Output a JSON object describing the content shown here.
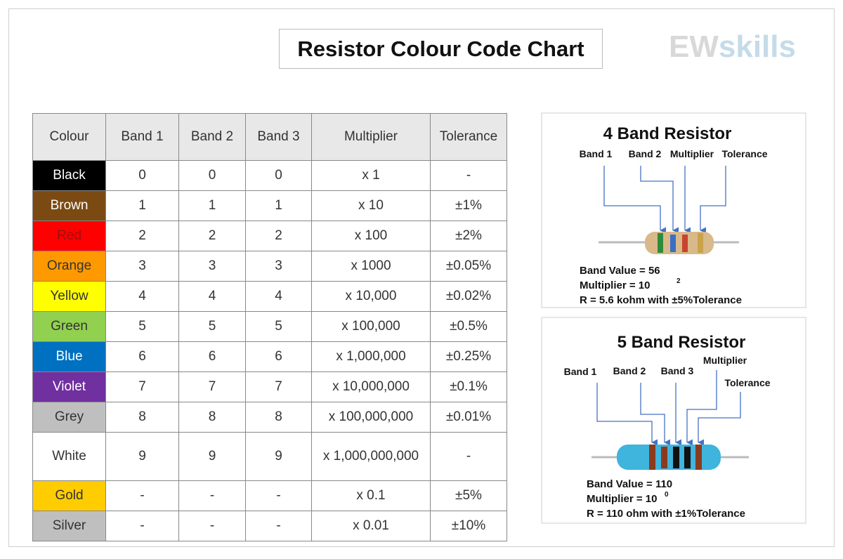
{
  "header": {
    "title": "Resistor Colour Code Chart",
    "logo_left": "EW",
    "logo_right": "skills"
  },
  "table": {
    "columns": [
      "Colour",
      "Band 1",
      "Band 2",
      "Band 3",
      "Multiplier",
      "Tolerance"
    ],
    "rows": [
      [
        "Black",
        "0",
        "0",
        "0",
        "x 1",
        "-"
      ],
      [
        "Brown",
        "1",
        "1",
        "1",
        "x 10",
        "±1%"
      ],
      [
        "Red",
        "2",
        "2",
        "2",
        "x 100",
        "±2%"
      ],
      [
        "Orange",
        "3",
        "3",
        "3",
        "x 1000",
        "±0.05%"
      ],
      [
        "Yellow",
        "4",
        "4",
        "4",
        "x 10,000",
        "±0.02%"
      ],
      [
        "Green",
        "5",
        "5",
        "5",
        "x 100,000",
        "±0.5%"
      ],
      [
        "Blue",
        "6",
        "6",
        "6",
        "x 1,000,000",
        "±0.25%"
      ],
      [
        "Violet",
        "7",
        "7",
        "7",
        "x 10,000,000",
        "±0.1%"
      ],
      [
        "Grey",
        "8",
        "8",
        "8",
        "x 100,000,000",
        "±0.01%"
      ],
      [
        "White",
        "9",
        "9",
        "9",
        "x 1,000,000,000",
        "-"
      ],
      [
        "Gold",
        "-",
        "-",
        "-",
        "x 0.1",
        "±5%"
      ],
      [
        "Silver",
        "-",
        "-",
        "-",
        "x 0.01",
        "±10%"
      ]
    ],
    "row_colors": [
      "#000000",
      "#7b4a12",
      "#ff0000",
      "#ff9900",
      "#ffff00",
      "#92d050",
      "#0070c0",
      "#7030a0",
      "#bfbfbf",
      "#ffffff",
      "#ffcc00",
      "#bfbfbf"
    ],
    "text_colors": [
      "#ffffff",
      "#ffffff",
      "#9a1010",
      "#333333",
      "#333333",
      "#333333",
      "#ffffff",
      "#ffffff",
      "#333333",
      "#333333",
      "#333333",
      "#333333"
    ]
  },
  "panels": [
    {
      "title": "4 Band Resistor",
      "labels": [
        "Band 1",
        "Band 2",
        "Multiplier",
        "Tolerance"
      ],
      "lines": [
        "Band Value = 56",
        "Multiplier =  10",
        "R = 5.6 kohm  with ±5%Tolerance"
      ],
      "exponent": "2"
    },
    {
      "title": "5 Band Resistor",
      "labels": [
        "Band 1",
        "Band 2",
        "Band 3",
        "Multiplier",
        "Tolerance"
      ],
      "lines": [
        "Band Value = 110",
        "Multiplier = 10",
        "R = 110 ohm  with ±1%Tolerance"
      ],
      "exponent": "0"
    }
  ]
}
